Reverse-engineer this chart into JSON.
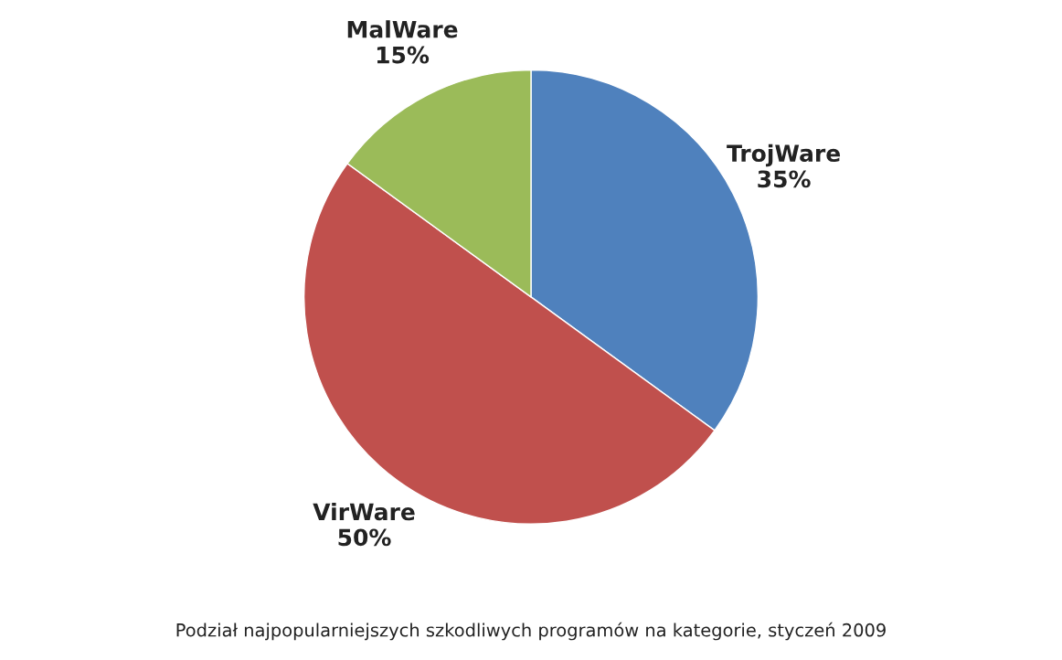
{
  "chart_data": {
    "type": "pie",
    "categories": [
      "TrojWare",
      "VirWare",
      "MalWare"
    ],
    "values": [
      35,
      50,
      15
    ],
    "colors": [
      "#4f81bd",
      "#c0504d",
      "#9bbb59"
    ],
    "value_labels": [
      "35%",
      "50%",
      "15%"
    ],
    "annotations": [
      "Podział najpopularniejszych szkodliwych programów na kategorie, styczeń 2009"
    ],
    "legend": false
  }
}
